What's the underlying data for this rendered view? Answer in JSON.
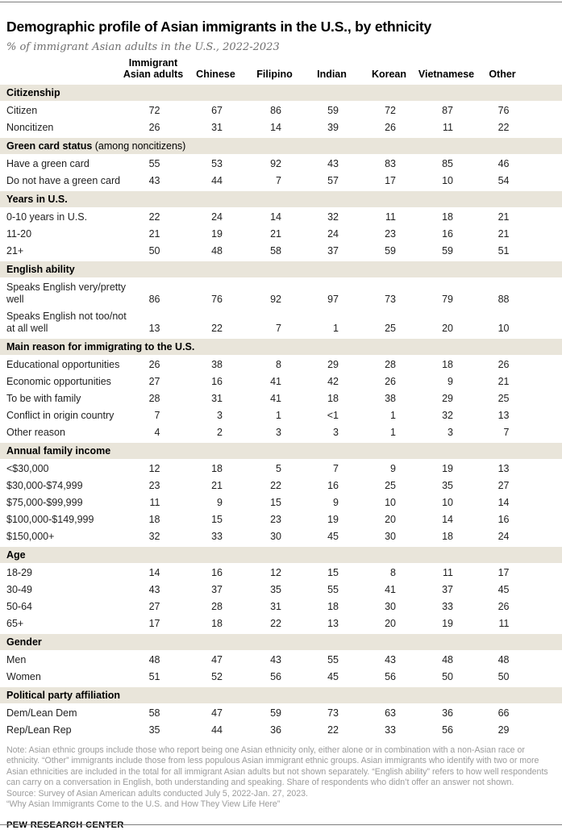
{
  "chart_data": {
    "type": "table",
    "title": "Demographic profile of Asian immigrants in the U.S., by ethnicity",
    "subtitle": "% of immigrant Asian adults in the U.S., 2022-2023",
    "columns": [
      "Immigrant Asian adults",
      "Chinese",
      "Filipino",
      "Indian",
      "Korean",
      "Vietnamese",
      "Other"
    ],
    "sections": [
      {
        "title": "Citizenship",
        "qualifier": "",
        "rows": [
          {
            "label": "Citizen",
            "values": [
              "72",
              "67",
              "86",
              "59",
              "72",
              "87",
              "76"
            ]
          },
          {
            "label": "Noncitizen",
            "values": [
              "26",
              "31",
              "14",
              "39",
              "26",
              "11",
              "22"
            ]
          }
        ]
      },
      {
        "title": "Green card status",
        "qualifier": " (among noncitizens)",
        "rows": [
          {
            "label": "Have a green card",
            "values": [
              "55",
              "53",
              "92",
              "43",
              "83",
              "85",
              "46"
            ]
          },
          {
            "label": "Do not have a green card",
            "values": [
              "43",
              "44",
              "7",
              "57",
              "17",
              "10",
              "54"
            ]
          }
        ]
      },
      {
        "title": "Years in U.S.",
        "qualifier": "",
        "rows": [
          {
            "label": "0-10 years in U.S.",
            "values": [
              "22",
              "24",
              "14",
              "32",
              "11",
              "18",
              "21"
            ]
          },
          {
            "label": "11-20",
            "values": [
              "21",
              "19",
              "21",
              "24",
              "23",
              "16",
              "21"
            ]
          },
          {
            "label": "21+",
            "values": [
              "50",
              "48",
              "58",
              "37",
              "59",
              "59",
              "51"
            ]
          }
        ]
      },
      {
        "title": "English ability",
        "qualifier": "",
        "rows": [
          {
            "label": "Speaks English very/pretty\nwell",
            "values": [
              "86",
              "76",
              "92",
              "97",
              "73",
              "79",
              "88"
            ]
          },
          {
            "label": "Speaks English not too/not\nat all well",
            "values": [
              "13",
              "22",
              "7",
              "1",
              "25",
              "20",
              "10"
            ]
          }
        ]
      },
      {
        "title": "Main reason for immigrating to the U.S.",
        "qualifier": "",
        "rows": [
          {
            "label": "Educational opportunities",
            "values": [
              "26",
              "38",
              "8",
              "29",
              "28",
              "18",
              "26"
            ]
          },
          {
            "label": "Economic opportunities",
            "values": [
              "27",
              "16",
              "41",
              "42",
              "26",
              "9",
              "21"
            ]
          },
          {
            "label": "To be with family",
            "values": [
              "28",
              "31",
              "41",
              "18",
              "38",
              "29",
              "25"
            ]
          },
          {
            "label": "Conflict in origin country",
            "values": [
              "7",
              "3",
              "1",
              "<1",
              "1",
              "32",
              "13"
            ]
          },
          {
            "label": "Other reason",
            "values": [
              "4",
              "2",
              "3",
              "3",
              "1",
              "3",
              "7"
            ]
          }
        ]
      },
      {
        "title": "Annual family income",
        "qualifier": "",
        "rows": [
          {
            "label": "<$30,000",
            "values": [
              "12",
              "18",
              "5",
              "7",
              "9",
              "19",
              "13"
            ]
          },
          {
            "label": "$30,000-$74,999",
            "values": [
              "23",
              "21",
              "22",
              "16",
              "25",
              "35",
              "27"
            ]
          },
          {
            "label": "$75,000-$99,999",
            "values": [
              "11",
              "9",
              "15",
              "9",
              "10",
              "10",
              "14"
            ]
          },
          {
            "label": "$100,000-$149,999",
            "values": [
              "18",
              "15",
              "23",
              "19",
              "20",
              "14",
              "16"
            ]
          },
          {
            "label": "$150,000+",
            "values": [
              "32",
              "33",
              "30",
              "45",
              "30",
              "18",
              "24"
            ]
          }
        ]
      },
      {
        "title": "Age",
        "qualifier": "",
        "rows": [
          {
            "label": "18-29",
            "values": [
              "14",
              "16",
              "12",
              "15",
              "8",
              "11",
              "17"
            ]
          },
          {
            "label": "30-49",
            "values": [
              "43",
              "37",
              "35",
              "55",
              "41",
              "37",
              "45"
            ]
          },
          {
            "label": "50-64",
            "values": [
              "27",
              "28",
              "31",
              "18",
              "30",
              "33",
              "26"
            ]
          },
          {
            "label": "65+",
            "values": [
              "17",
              "18",
              "22",
              "13",
              "20",
              "19",
              "11"
            ]
          }
        ]
      },
      {
        "title": "Gender",
        "qualifier": "",
        "rows": [
          {
            "label": "Men",
            "values": [
              "48",
              "47",
              "43",
              "55",
              "43",
              "48",
              "48"
            ]
          },
          {
            "label": "Women",
            "values": [
              "51",
              "52",
              "56",
              "45",
              "56",
              "50",
              "50"
            ]
          }
        ]
      },
      {
        "title": "Political party affiliation",
        "qualifier": "",
        "rows": [
          {
            "label": "Dem/Lean Dem",
            "values": [
              "58",
              "47",
              "59",
              "73",
              "63",
              "36",
              "66"
            ]
          },
          {
            "label": "Rep/Lean Rep",
            "values": [
              "35",
              "44",
              "36",
              "22",
              "33",
              "56",
              "29"
            ]
          }
        ]
      }
    ]
  },
  "footer": {
    "note": "Note: Asian ethnic groups include those who report being one Asian ethnicity only, either alone or in combination with a non-Asian race or ethnicity. “Other” immigrants include those from less populous Asian immigrant ethnic groups. Asian immigrants who identify with two or more Asian ethnicities are included in the total for all immigrant Asian adults but not shown separately. “English ability” refers to how well respondents can carry on a conversation in English, both understanding and speaking. Share of respondents who didn’t offer an answer not shown.",
    "source": "Source: Survey of Asian American adults conducted July 5, 2022-Jan. 27, 2023.",
    "report": "“Why Asian Immigrants Come to the U.S. and How They View Life Here”",
    "brand": "PEW RESEARCH CENTER"
  },
  "colors": {
    "section_band": "#e9e5da",
    "note_text": "#9b9b9b",
    "body_text": "#1f1f1f",
    "rule": "#7d7d7d"
  }
}
